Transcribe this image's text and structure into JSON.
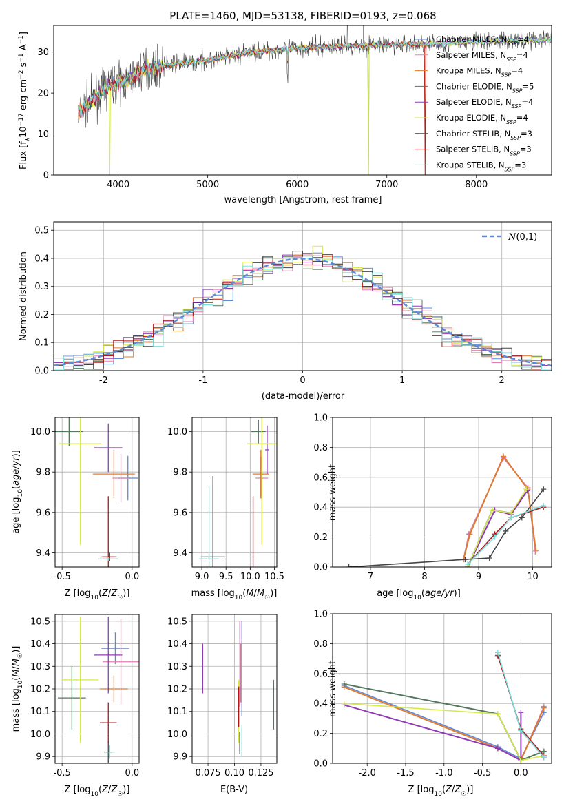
{
  "figure": {
    "title": "PLATE=1460, MJD=53138, FIBERID=0193, z=0.068",
    "models": [
      {
        "name": "Chabrier MILES",
        "nssp": "4",
        "color": "#5f88d6"
      },
      {
        "name": "Salpeter MILES",
        "nssp": "4",
        "color": "#e57fb4"
      },
      {
        "name": "Kroupa MILES",
        "nssp": "4",
        "color": "#e07a2e"
      },
      {
        "name": "Chabrier ELODIE",
        "nssp": "5",
        "color": "#53785c"
      },
      {
        "name": "Salpeter ELODIE",
        "nssp": "4",
        "color": "#8e3bb5"
      },
      {
        "name": "Kroupa ELODIE",
        "nssp": "4",
        "color": "#d7ea4c"
      },
      {
        "name": "Chabrier STELIB",
        "nssp": "3",
        "color": "#444444"
      },
      {
        "name": "Salpeter STELIB",
        "nssp": "3",
        "color": "#b01818"
      },
      {
        "name": "Kroupa STELIB",
        "nssp": "3",
        "color": "#79e0df"
      }
    ]
  },
  "chart_data": [
    {
      "id": "spectrum",
      "type": "line",
      "xlabel": "wavelength [Angstrom, rest frame]",
      "ylabel": "Flux [f_λ10^-17 erg cm^-2 s^-1 A^-1]",
      "xlim": [
        3280,
        8840
      ],
      "ylim": [
        0,
        36.5
      ],
      "xticks": [
        4000,
        5000,
        6000,
        7000,
        8000
      ],
      "yticks": [
        0,
        10,
        20,
        30
      ],
      "grid": false,
      "legend": "right",
      "series": [
        {
          "x": [
            3550,
            3700,
            3900,
            4100,
            4300,
            4600,
            5000,
            5500,
            6000,
            6500,
            7000,
            7500,
            8000,
            8500,
            8840
          ],
          "values": [
            15,
            18,
            22,
            23,
            26,
            27,
            28,
            30,
            31,
            31.5,
            31.8,
            32,
            32.5,
            33,
            33
          ]
        }
      ]
    },
    {
      "id": "residuals",
      "type": "line",
      "xlabel": "(data-model)/error",
      "ylabel": "Normed distribution",
      "xlim": [
        -2.5,
        2.5
      ],
      "ylim": [
        0,
        0.53
      ],
      "xticks": [
        -2,
        -1,
        0,
        1,
        2
      ],
      "yticks": [
        0.0,
        0.1,
        0.2,
        0.3,
        0.4,
        0.5
      ],
      "grid": true,
      "legend": "top-right",
      "reference": {
        "label": "N(0,1)",
        "color": "#5f88d6"
      }
    },
    {
      "id": "age-vs-Z",
      "type": "scatter",
      "xlabel": "Z [log10(Z/Z☉)]",
      "ylabel": "age [log10(age/yr)]",
      "xlim": [
        -0.55,
        0.05
      ],
      "ylim": [
        9.33,
        10.07
      ],
      "xticks": [
        -0.5,
        0.0
      ],
      "yticks": [
        9.4,
        9.6,
        9.8,
        10.0
      ],
      "grid": true,
      "points": [
        {
          "x": -0.03,
          "y": 9.77,
          "xerr": 0.07,
          "yerr": 0.11
        },
        {
          "x": -0.08,
          "y": 9.77,
          "xerr": 0.06,
          "yerr": 0.12
        },
        {
          "x": -0.13,
          "y": 9.79,
          "xerr": 0.15,
          "yerr": 0.12
        },
        {
          "x": -0.45,
          "y": 10.0,
          "xerr": 0.1,
          "yerr": 0.07
        },
        {
          "x": -0.17,
          "y": 9.92,
          "xerr": 0.1,
          "yerr": 0.12
        },
        {
          "x": -0.37,
          "y": 9.94,
          "xerr": 0.15,
          "yerr": 0.5
        },
        {
          "x": -0.16,
          "y": 9.38,
          "xerr": 0.05,
          "yerr": 0.02
        },
        {
          "x": -0.17,
          "y": 9.38,
          "xerr": 0.05,
          "yerr": 0.3
        },
        {
          "x": -0.17,
          "y": 9.37,
          "xerr": 0.07,
          "yerr": 0.01
        }
      ]
    },
    {
      "id": "age-vs-mass",
      "type": "scatter",
      "xlabel": "mass [log10(M/M☉)]",
      "ylabel": "",
      "xlim": [
        8.8,
        10.55
      ],
      "ylim": [
        9.33,
        10.07
      ],
      "xticks": [
        9.0,
        9.5,
        10.0,
        10.5
      ],
      "yticks": [
        9.4,
        9.6,
        9.8,
        10.0
      ],
      "grid": true,
      "points": [
        {
          "x": 10.22,
          "y": 9.77,
          "xerr": 0.02,
          "yerr": 0.1
        },
        {
          "x": 10.24,
          "y": 9.77,
          "xerr": 0.13,
          "yerr": 0.11
        },
        {
          "x": 10.22,
          "y": 9.79,
          "xerr": 0.17,
          "yerr": 0.12
        },
        {
          "x": 10.17,
          "y": 10.0,
          "xerr": 0.15,
          "yerr": 0.06
        },
        {
          "x": 10.35,
          "y": 9.91,
          "xerr": 0.04,
          "yerr": 0.12
        },
        {
          "x": 10.24,
          "y": 9.94,
          "xerr": 0.3,
          "yerr": 0.5
        },
        {
          "x": 9.23,
          "y": 9.38,
          "xerr": 0.25,
          "yerr": 0.4
        },
        {
          "x": 10.06,
          "y": 9.38,
          "xerr": 0.01,
          "yerr": 0.3
        },
        {
          "x": 9.15,
          "y": 9.37,
          "xerr": 0.2,
          "yerr": 0.36
        }
      ]
    },
    {
      "id": "weight-vs-age",
      "type": "line",
      "xlabel": "age [log10(age/yr)]",
      "ylabel": "mass weight",
      "xlim": [
        6.3,
        10.35
      ],
      "ylim": [
        0,
        1
      ],
      "xticks": [
        7,
        8,
        9,
        10
      ],
      "yticks": [
        0.0,
        0.2,
        0.4,
        0.6,
        0.8,
        1.0
      ],
      "grid": true,
      "series": [
        {
          "x": [
            8.72,
            8.82,
            9.46,
            9.91,
            10.05
          ],
          "values": [
            0.05,
            0.22,
            0.73,
            0.53,
            0.1
          ]
        },
        {
          "x": [
            8.72,
            8.82,
            9.46,
            9.91,
            10.05
          ],
          "values": [
            0.05,
            0.22,
            0.73,
            0.53,
            0.1
          ]
        },
        {
          "x": [
            8.72,
            8.84,
            9.46,
            9.91,
            10.06
          ],
          "values": [
            0.05,
            0.22,
            0.74,
            0.52,
            0.11
          ]
        },
        {
          "x": [
            8.8,
            9.25,
            9.6,
            9.9
          ],
          "values": [
            0.0,
            0.38,
            0.36,
            0.51
          ]
        },
        {
          "x": [
            8.8,
            9.3,
            9.6,
            9.9
          ],
          "values": [
            0.0,
            0.38,
            0.35,
            0.51
          ]
        },
        {
          "x": [
            8.8,
            9.25,
            9.6,
            9.88
          ],
          "values": [
            0.0,
            0.38,
            0.36,
            0.52
          ]
        },
        {
          "x": [
            6.6,
            8.75,
            9.2,
            9.5,
            9.8,
            10.2
          ],
          "values": [
            0.0,
            0.05,
            0.06,
            0.24,
            0.33,
            0.52
          ]
        },
        {
          "x": [
            8.8,
            9.3,
            9.6,
            10.2
          ],
          "values": [
            0.02,
            0.22,
            0.33,
            0.4
          ]
        },
        {
          "x": [
            8.8,
            9.3,
            9.6,
            10.2
          ],
          "values": [
            0.02,
            0.2,
            0.33,
            0.41
          ]
        }
      ]
    },
    {
      "id": "mass-vs-Z",
      "type": "scatter",
      "xlabel": "Z [log10(Z/Z☉)]",
      "ylabel": "mass [log10(M/M☉)]",
      "xlim": [
        -0.55,
        0.05
      ],
      "ylim": [
        9.87,
        10.53
      ],
      "xticks": [
        -0.5,
        0.0
      ],
      "yticks": [
        9.9,
        10.0,
        10.1,
        10.2,
        10.3,
        10.4,
        10.5
      ],
      "grid": true,
      "points": [
        {
          "x": -0.12,
          "y": 10.38,
          "xerr": 0.1,
          "yerr": 0.07
        },
        {
          "x": -0.08,
          "y": 10.32,
          "xerr": 0.13,
          "yerr": 0.19
        },
        {
          "x": -0.13,
          "y": 10.2,
          "xerr": 0.1,
          "yerr": 0.06
        },
        {
          "x": -0.43,
          "y": 10.16,
          "xerr": 0.1,
          "yerr": 0.14
        },
        {
          "x": -0.17,
          "y": 10.35,
          "xerr": 0.1,
          "yerr": 0.17
        },
        {
          "x": -0.37,
          "y": 10.24,
          "xerr": 0.13,
          "yerr": 0.28
        },
        {
          "x": -0.17,
          "y": 9.92,
          "xerr": 0.03,
          "yerr": 0.05
        },
        {
          "x": -0.17,
          "y": 10.05,
          "xerr": 0.06,
          "yerr": 0.09
        },
        {
          "x": -0.16,
          "y": 9.92,
          "xerr": 0.04,
          "yerr": 0.03
        }
      ]
    },
    {
      "id": "mass-vs-ebv",
      "type": "scatter",
      "xlabel": "E(B-V)",
      "ylabel": "",
      "xlim": [
        0.06,
        0.14
      ],
      "ylim": [
        9.87,
        10.53
      ],
      "xticks": [
        0.075,
        0.1,
        0.125
      ],
      "yticks": [
        9.9,
        10.0,
        10.1,
        10.2,
        10.3,
        10.4,
        10.5
      ],
      "grid": true,
      "points": [
        {
          "x": 0.107,
          "y": 10.29,
          "xerr": 0.0,
          "yerr": 0.21
        },
        {
          "x": 0.105,
          "y": 10.31,
          "xerr": 0.0,
          "yerr": 0.19
        },
        {
          "x": 0.106,
          "y": 10.27,
          "xerr": 0.0,
          "yerr": 0.13
        },
        {
          "x": 0.137,
          "y": 10.13,
          "xerr": 0.0,
          "yerr": 0.11
        },
        {
          "x": 0.07,
          "y": 10.29,
          "xerr": 0.0,
          "yerr": 0.11
        },
        {
          "x": 0.104,
          "y": 10.1,
          "xerr": 0.0,
          "yerr": 0.14
        },
        {
          "x": 0.105,
          "y": 9.96,
          "xerr": 0.0,
          "yerr": 0.05
        },
        {
          "x": 0.104,
          "y": 10.12,
          "xerr": 0.0,
          "yerr": 0.09
        },
        {
          "x": 0.107,
          "y": 9.97,
          "xerr": 0.0,
          "yerr": 0.07
        }
      ]
    },
    {
      "id": "weight-vs-Z",
      "type": "line",
      "xlabel": "Z [log10(Z/Z☉)]",
      "ylabel": "mass weight",
      "xlim": [
        -2.45,
        0.4
      ],
      "ylim": [
        0,
        1
      ],
      "xticks": [
        -2.0,
        -1.5,
        -1.0,
        -0.5,
        0.0
      ],
      "yticks": [
        0.0,
        0.2,
        0.4,
        0.6,
        0.8,
        1.0
      ],
      "grid": true,
      "series": [
        {
          "x": [
            -2.3,
            -0.3,
            0.0,
            0.3
          ],
          "values": [
            0.52,
            0.11,
            0.03,
            0.34
          ]
        },
        {
          "x": [
            -2.3,
            -0.3,
            0.0,
            0.3
          ],
          "values": [
            0.51,
            0.1,
            0.02,
            0.38
          ]
        },
        {
          "x": [
            -2.3,
            -0.3,
            0.0,
            0.3
          ],
          "values": [
            0.51,
            0.1,
            0.02,
            0.37
          ]
        },
        {
          "x": [
            -2.3,
            -0.3,
            0.0,
            0.3
          ],
          "values": [
            0.53,
            0.33,
            0.02,
            0.08
          ]
        },
        {
          "x": [
            -2.3,
            -0.3,
            0.0,
            0.0
          ],
          "values": [
            0.39,
            0.1,
            0.02,
            0.34
          ]
        },
        {
          "x": [
            -2.3,
            -0.3,
            0.0,
            0.3
          ],
          "values": [
            0.4,
            0.33,
            0.02,
            0.05
          ]
        },
        {
          "x": [
            -0.3,
            0.0,
            0.3
          ],
          "values": [
            0.73,
            0.22,
            0.04
          ]
        },
        {
          "x": [
            -0.3,
            0.0,
            0.3
          ],
          "values": [
            0.72,
            0.23,
            0.05
          ]
        },
        {
          "x": [
            -0.3,
            0.0,
            0.3
          ],
          "values": [
            0.74,
            0.22,
            0.04
          ]
        }
      ]
    }
  ]
}
